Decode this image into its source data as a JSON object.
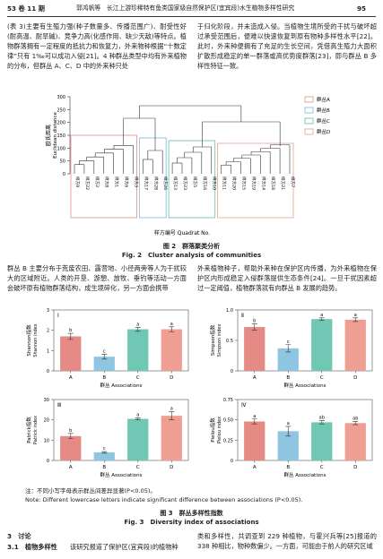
{
  "header": {
    "volume": "53 卷 11 期",
    "running_title": "郭鸿帆等　长江上游珍稀特有鱼类国家级自然保护区(宜宾段)水生植物多样性研究",
    "page": "95"
  },
  "paragraphs": {
    "top_left": "(表 3)主要有生殖力强(种子数量多、传播范围广)、耐受性好(耐高温、耐旱碱)、竞争力高(化感作用、缺少天敌)等特点。植物群落拥有一定程度的抵抗力和恢复力，外来物种根据“十数定律”只有 1‰可以成功入侵[21]。4 种群丛类型中均有外来植物的分布，但群丛 A、C、D 中的外来种只处",
    "top_right": "于归化阶段，并未造成入侵。当植物生境所受的干扰与破坏超过承受范围后，便难以快速恢复到原有物种多样性水平[22]。此时，外来种便拥有了充足的生长空间，凭借高生殖力大面积扩散形成稳定的单一群落或高优势度群落[23]，即与群丛 B 多样性特征一致。",
    "mid_left": "群丛 B 主要分布于荒废农田、露营地、小径两旁等人为干扰较大的区域附近。人类的开垦、游憩、放牧、垂钓等活动一方面会破坏原有植物群落结构，成生境碎化，另一方面会携带",
    "mid_right": "外来植物种子，帮助外来种在保护区内传播，为外来植物在保护区内形成稳定入侵群落提供生态条件[24]。一旦干扰因素超过一定阈值，植物群落就有向群丛 B 发展的趋势。",
    "bottom_left_heading": "3　讨论",
    "bottom_left_sub": "3.1　植物多样性",
    "bottom_left": "该研究报道了保护区(宜宾段)的植物种",
    "bottom_right": "类和多样性，共调查到 229 种植物，与霍兴兵等[25]报道的 338 种相比，物种数偏少。一方面，可能由于前人的研究区域"
  },
  "figure2": {
    "type": "dendrogram",
    "ylabel_cn": "欧氏距离",
    "ylabel_en": "Euclidean distance",
    "xlabel": "样方编号 Quadrat No.",
    "ylim": [
      0,
      300
    ],
    "yticks": [
      0,
      50,
      100,
      150,
      200,
      250,
      300
    ],
    "groups": [
      {
        "name": "群丛A",
        "color": "#e58a84",
        "leaves": [
          "样方9",
          "样方22",
          "样方2",
          "样方8",
          "样方1",
          "样方6",
          "样方3"
        ]
      },
      {
        "name": "群丛B",
        "color": "#7fb6d6",
        "leaves": [
          "样方17",
          "样方28",
          "样方26"
        ]
      },
      {
        "name": "群丛C",
        "color": "#5fbfa8",
        "leaves": [
          "样方13",
          "样方23",
          "样方5",
          "样方16",
          "样方10"
        ]
      },
      {
        "name": "群丛D",
        "color": "#e9a08e",
        "leaves": [
          "样方11",
          "样方20",
          "样方15",
          "样方19",
          "样方14",
          "样方18",
          "样方21",
          "样方7"
        ]
      }
    ],
    "caption_cn": "图 2　群落聚类分析",
    "caption_en": "Fig. 2　Cluster analysis of communities"
  },
  "figure3": {
    "panels": [
      {
        "type": "bar",
        "numeral": "Ⅰ",
        "ylabel_cn": "Shannon指数",
        "ylabel_en": "Shannon index",
        "xlabel": "群丛 Associations",
        "categories": [
          "A",
          "B",
          "C",
          "D"
        ],
        "values": [
          1.7,
          0.7,
          2.05,
          2.05
        ],
        "errors": [
          0.15,
          0.12,
          0.1,
          0.12
        ],
        "letters": [
          "b",
          "c",
          "a",
          "a"
        ],
        "colors": [
          "#e58a84",
          "#8ec5e0",
          "#6fc7b4",
          "#ee9e92"
        ],
        "ylim": [
          0,
          3
        ],
        "yticks": [
          0,
          1,
          2,
          3
        ]
      },
      {
        "type": "bar",
        "numeral": "Ⅱ",
        "ylabel_cn": "Simpson指数",
        "ylabel_en": "Simpson index",
        "xlabel": "群丛 Associations",
        "categories": [
          "A",
          "B",
          "C",
          "D"
        ],
        "values": [
          0.72,
          0.37,
          0.85,
          0.84
        ],
        "errors": [
          0.05,
          0.06,
          0.02,
          0.03
        ],
        "letters": [
          "b",
          "c",
          "a",
          "a"
        ],
        "colors": [
          "#e58a84",
          "#8ec5e0",
          "#6fc7b4",
          "#ee9e92"
        ],
        "ylim": [
          0,
          1
        ],
        "yticks": [
          0,
          0.5,
          {
            "value": 1,
            "label": "1.0"
          }
        ]
      },
      {
        "type": "bar",
        "numeral": "Ⅲ",
        "ylabel_cn": "Patrick指数",
        "ylabel_en": "Patrick index",
        "xlabel": "群丛 Associations",
        "categories": [
          "A",
          "B",
          "C",
          "D"
        ],
        "values": [
          12,
          4,
          20.5,
          22
        ],
        "errors": [
          1.3,
          0.4,
          0.5,
          2
        ],
        "letters": [
          "b",
          "c",
          "a",
          "a"
        ],
        "colors": [
          "#e58a84",
          "#8ec5e0",
          "#6fc7b4",
          "#ee9e92"
        ],
        "ylim": [
          0,
          30
        ],
        "yticks": [
          0,
          10,
          20,
          30
        ]
      },
      {
        "type": "bar",
        "numeral": "Ⅳ",
        "ylabel_cn": "Pielou指数",
        "ylabel_en": "Pielou index",
        "xlabel": "群丛 Associations",
        "categories": [
          "A",
          "B",
          "C",
          "D"
        ],
        "values": [
          0.48,
          0.36,
          0.47,
          0.46
        ],
        "errors": [
          0.03,
          0.06,
          0.02,
          0.02
        ],
        "letters": [
          "a",
          "a",
          "ab",
          "ab"
        ],
        "colors": [
          "#e58a84",
          "#8ec5e0",
          "#6fc7b4",
          "#ee9e92"
        ],
        "ylim": [
          0,
          0.75
        ],
        "yticks": [
          0,
          0.25,
          {
            "value": 0.5,
            "label": "0.50"
          },
          0.75
        ]
      }
    ],
    "note_cn": "注：不同小写字母表示群丛间差异显著(P<0.05)。",
    "note_en": "Note: Different lowercase letters indicate significant difference between associations (P<0.05).",
    "caption_cn": "图 3　群丛多样性指数",
    "caption_en": "Fig. 3　Diversity index of associations"
  }
}
